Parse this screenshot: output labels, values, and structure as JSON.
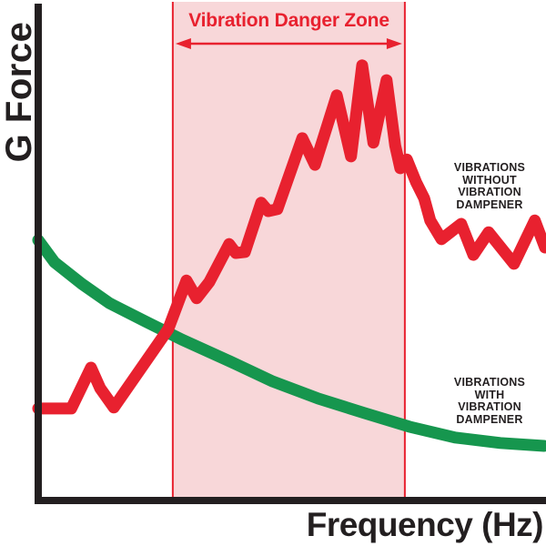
{
  "chart": {
    "ylabel": "G Force",
    "xlabel": "Frequency (Hz)",
    "zone_title": "Vibration Danger Zone",
    "labels": {
      "red_series": "VIBRATIONS\nWITHOUT\nVIBRATION\nDAMPENER",
      "green_series": "VIBRATIONS\nWITH\nVIBRATION\nDAMPENER"
    }
  },
  "colors": {
    "red": "#e8212f",
    "pink": "#f8d7d9",
    "green": "#16964e",
    "axis": "#231f20"
  },
  "chart_data": {
    "type": "line",
    "title": "Vibration Danger Zone",
    "xlabel": "Frequency (Hz)",
    "ylabel": "G Force",
    "axis_ranges_note": "No numeric ticks shown; point values are percent of plot range (x: 0=y-axis to 100=right edge, y: 0=x-axis to 100=top)",
    "xlim": [
      0,
      100
    ],
    "ylim": [
      0,
      100
    ],
    "grid": false,
    "legend_position": "annotations at right side of plot",
    "danger_zone": {
      "label": "Vibration Danger Zone",
      "x_start": 26.5,
      "x_end": 72.2,
      "arrow": "double-headed horizontal arrow near top of zone"
    },
    "series": [
      {
        "name": "Vibrations without vibration dampener",
        "color": "#e8212f",
        "style": "thick jagged line",
        "points": [
          [
            0,
            18.5
          ],
          [
            6.5,
            18.5
          ],
          [
            10.4,
            26.8
          ],
          [
            12.2,
            22.6
          ],
          [
            14.9,
            18.7
          ],
          [
            25.6,
            34.6
          ],
          [
            29.2,
            44.5
          ],
          [
            31.2,
            40.9
          ],
          [
            33.7,
            44.2
          ],
          [
            37.6,
            51.9
          ],
          [
            38.9,
            50.1
          ],
          [
            40.7,
            50.3
          ],
          [
            43.9,
            60.3
          ],
          [
            45.3,
            58.6
          ],
          [
            47.1,
            59.0
          ],
          [
            52.0,
            73.4
          ],
          [
            54.5,
            68.0
          ],
          [
            58.8,
            82.1
          ],
          [
            61.6,
            69.7
          ],
          [
            63.8,
            88.2
          ],
          [
            66.0,
            72.5
          ],
          [
            68.6,
            85.2
          ],
          [
            70.3,
            71.9
          ],
          [
            71.3,
            67.3
          ],
          [
            72.6,
            69.1
          ],
          [
            74.4,
            64.5
          ],
          [
            76.0,
            61.2
          ],
          [
            77.2,
            56.7
          ],
          [
            79.4,
            52.9
          ],
          [
            83.3,
            56.0
          ],
          [
            85.7,
            49.7
          ],
          [
            88.7,
            54.3
          ],
          [
            93.7,
            47.9
          ],
          [
            97.8,
            56.7
          ],
          [
            99.8,
            51.2
          ]
        ]
      },
      {
        "name": "Vibrations with vibration dampener",
        "color": "#16964e",
        "style": "thick smooth decaying curve",
        "points": [
          [
            0,
            52.7
          ],
          [
            3.2,
            48.2
          ],
          [
            8.6,
            43.8
          ],
          [
            14.0,
            39.9
          ],
          [
            21.1,
            36.2
          ],
          [
            28.3,
            32.5
          ],
          [
            37.3,
            28.3
          ],
          [
            46.2,
            24.0
          ],
          [
            55.2,
            20.5
          ],
          [
            64.2,
            17.6
          ],
          [
            73.1,
            14.8
          ],
          [
            82.1,
            12.6
          ],
          [
            91.0,
            11.5
          ],
          [
            99.6,
            10.9
          ]
        ]
      }
    ]
  }
}
